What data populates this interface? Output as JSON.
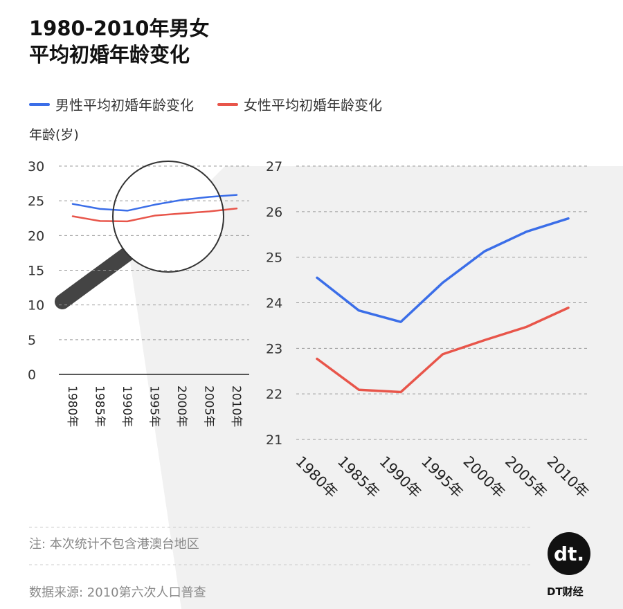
{
  "title_line1": "1980-2010年男女",
  "title_line2": "平均初婚年龄变化",
  "colors": {
    "male": "#3b6ee8",
    "female": "#e8554a",
    "panel": "#f1f1f1"
  },
  "footer": {
    "note": "注: 本次统计不包含港澳台地区",
    "source": "数据来源: 2010第六次人口普查"
  },
  "logo": {
    "mark": "dt.",
    "name": "DT财经"
  },
  "chart_data": [
    {
      "type": "line",
      "view": "overview",
      "ylabel": "年龄(岁)",
      "categories": [
        "1980年",
        "1985年",
        "1990年",
        "1995年",
        "2000年",
        "2005年",
        "2010年"
      ],
      "ylim": [
        0,
        30
      ],
      "yticks": [
        0,
        5,
        10,
        15,
        20,
        25,
        30
      ],
      "grid": true,
      "legend_placement": "top",
      "series": [
        {
          "name": "男性平均初婚年龄变化",
          "values": [
            24.55,
            23.83,
            23.58,
            24.44,
            25.13,
            25.56,
            25.85
          ]
        },
        {
          "name": "女性平均初婚年龄变化",
          "values": [
            22.77,
            22.09,
            22.04,
            22.87,
            23.18,
            23.47,
            23.89
          ]
        }
      ]
    },
    {
      "type": "line",
      "view": "zoomed",
      "categories": [
        "1980年",
        "1985年",
        "1990年",
        "1995年",
        "2000年",
        "2005年",
        "2010年"
      ],
      "ylim": [
        21,
        27
      ],
      "yticks": [
        21,
        22,
        23,
        24,
        25,
        26,
        27
      ],
      "grid": true,
      "series": [
        {
          "name": "男性平均初婚年龄变化",
          "values": [
            24.55,
            23.83,
            23.58,
            24.44,
            25.13,
            25.56,
            25.85
          ]
        },
        {
          "name": "女性平均初婚年龄变化",
          "values": [
            22.77,
            22.09,
            22.04,
            22.87,
            23.18,
            23.47,
            23.89
          ]
        }
      ]
    }
  ]
}
